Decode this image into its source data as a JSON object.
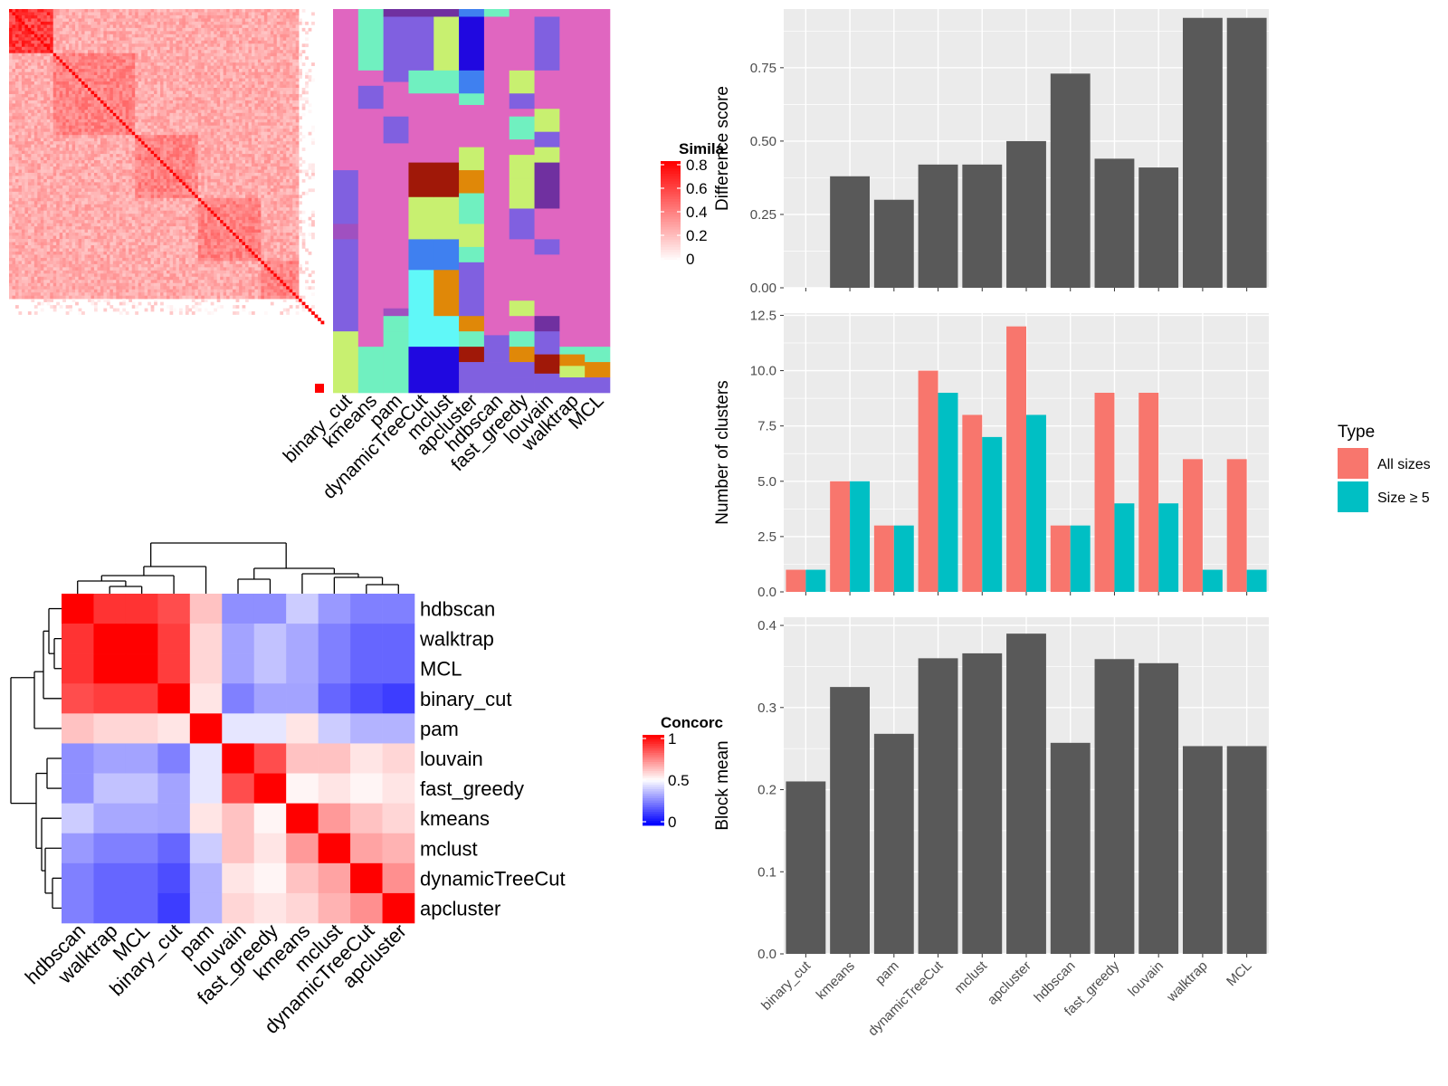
{
  "colors": {
    "panel_bg": "#EBEBEB",
    "grid": "#FFFFFF",
    "bar_fill": "#595959",
    "all_sizes": "#F8766D",
    "size_ge5": "#00BFC4",
    "heat_red": "#FF0000",
    "heat_white": "#FFFFFF",
    "heat_blue": "#0000FF"
  },
  "chart_data": [
    {
      "type": "heatmap",
      "id": "similarity_heatmap",
      "legend_title": "Simila",
      "legend_ticks": [
        "0.8",
        "0.6",
        "0.4",
        "0.2",
        "0"
      ],
      "legend_range": [
        0,
        0.85
      ],
      "matrix_size": 100,
      "note_colors": [
        "#FF0000",
        "#FFFFFF"
      ]
    },
    {
      "type": "heatmap",
      "id": "cluster_assignments",
      "columns": [
        "binary_cut",
        "kmeans",
        "pam",
        "dynamicTreeCut",
        "mclust",
        "apcluster",
        "hdbscan",
        "fast_greedy",
        "louvain",
        "walktrap",
        "MCL"
      ],
      "palette": [
        "#E066C0",
        "#70F0C0",
        "#8060E0",
        "#C8F070",
        "#A01808",
        "#E08808",
        "#3F80F0",
        "#60F8F8",
        "#2008E0",
        "#7030A0",
        "#A050C0"
      ]
    },
    {
      "type": "heatmap",
      "id": "concordance_heatmap",
      "legend_title": "Concorc",
      "legend_ticks": [
        "1",
        "0.5",
        "0"
      ],
      "legend_range": [
        0,
        1
      ],
      "rows": [
        "hdbscan",
        "walktrap",
        "MCL",
        "binary_cut",
        "pam",
        "louvain",
        "fast_greedy",
        "kmeans",
        "mclust",
        "dynamicTreeCut",
        "apcluster"
      ],
      "columns": [
        "hdbscan",
        "walktrap",
        "MCL",
        "binary_cut",
        "pam",
        "louvain",
        "fast_greedy",
        "kmeans",
        "mclust",
        "dynamicTreeCut",
        "apcluster"
      ],
      "values": [
        [
          1.0,
          0.9,
          0.9,
          0.85,
          0.62,
          0.28,
          0.28,
          0.4,
          0.3,
          0.25,
          0.25
        ],
        [
          0.9,
          1.0,
          1.0,
          0.88,
          0.58,
          0.32,
          0.38,
          0.33,
          0.25,
          0.2,
          0.2
        ],
        [
          0.9,
          1.0,
          1.0,
          0.88,
          0.58,
          0.32,
          0.38,
          0.33,
          0.25,
          0.2,
          0.2
        ],
        [
          0.85,
          0.88,
          0.88,
          1.0,
          0.55,
          0.25,
          0.32,
          0.32,
          0.2,
          0.15,
          0.12
        ],
        [
          0.62,
          0.58,
          0.58,
          0.55,
          1.0,
          0.45,
          0.45,
          0.55,
          0.4,
          0.35,
          0.35
        ],
        [
          0.28,
          0.32,
          0.32,
          0.25,
          0.45,
          1.0,
          0.85,
          0.62,
          0.62,
          0.55,
          0.58
        ],
        [
          0.28,
          0.38,
          0.38,
          0.32,
          0.45,
          0.85,
          1.0,
          0.52,
          0.55,
          0.52,
          0.55
        ],
        [
          0.4,
          0.33,
          0.33,
          0.32,
          0.55,
          0.62,
          0.52,
          1.0,
          0.7,
          0.62,
          0.58
        ],
        [
          0.3,
          0.25,
          0.25,
          0.2,
          0.4,
          0.62,
          0.55,
          0.7,
          1.0,
          0.68,
          0.65
        ],
        [
          0.25,
          0.2,
          0.2,
          0.15,
          0.35,
          0.55,
          0.52,
          0.62,
          0.68,
          1.0,
          0.72
        ],
        [
          0.25,
          0.2,
          0.2,
          0.12,
          0.35,
          0.58,
          0.55,
          0.58,
          0.65,
          0.72,
          1.0
        ]
      ]
    },
    {
      "type": "bar",
      "id": "difference_score",
      "categories": [
        "binary_cut",
        "kmeans",
        "pam",
        "dynamicTreeCut",
        "mclust",
        "apcluster",
        "hdbscan",
        "fast_greedy",
        "louvain",
        "walktrap",
        "MCL"
      ],
      "values": [
        null,
        0.38,
        0.3,
        0.42,
        0.42,
        0.5,
        0.73,
        0.44,
        0.41,
        0.92,
        0.92
      ],
      "ylabel": "Difference score",
      "ylim": [
        0,
        0.95
      ],
      "yticks": [
        0,
        0.25,
        0.5,
        0.75
      ],
      "ytick_labels": [
        "0.00",
        "0.25",
        "0.50",
        "0.75"
      ],
      "grid": true
    },
    {
      "type": "bar",
      "id": "number_of_clusters",
      "categories": [
        "binary_cut",
        "kmeans",
        "pam",
        "dynamicTreeCut",
        "mclust",
        "apcluster",
        "hdbscan",
        "fast_greedy",
        "louvain",
        "walktrap",
        "MCL"
      ],
      "series": [
        {
          "name": "All sizes",
          "values": [
            1,
            5,
            3,
            10,
            8,
            12,
            3,
            9,
            9,
            6,
            6
          ]
        },
        {
          "name": "Size ≥ 5",
          "values": [
            1,
            5,
            3,
            9,
            7,
            8,
            3,
            4,
            4,
            1,
            1
          ]
        }
      ],
      "ylabel": "Number of clusters",
      "ylim": [
        0,
        12.6
      ],
      "yticks": [
        0,
        2.5,
        5,
        7.5,
        10,
        12.5
      ],
      "ytick_labels": [
        "0.0",
        "2.5",
        "5.0",
        "7.5",
        "10.0",
        "12.5"
      ],
      "legend_title": "Type",
      "legend_position": "right",
      "grid": true
    },
    {
      "type": "bar",
      "id": "block_mean",
      "categories": [
        "binary_cut",
        "kmeans",
        "pam",
        "dynamicTreeCut",
        "mclust",
        "apcluster",
        "hdbscan",
        "fast_greedy",
        "louvain",
        "walktrap",
        "MCL"
      ],
      "values": [
        0.21,
        0.325,
        0.268,
        0.36,
        0.366,
        0.39,
        0.257,
        0.359,
        0.354,
        0.253,
        0.253
      ],
      "ylabel": "Block mean",
      "ylim": [
        0,
        0.41
      ],
      "yticks": [
        0,
        0.1,
        0.2,
        0.3,
        0.4
      ],
      "ytick_labels": [
        "0.0",
        "0.1",
        "0.2",
        "0.3",
        "0.4"
      ],
      "grid": true
    }
  ]
}
